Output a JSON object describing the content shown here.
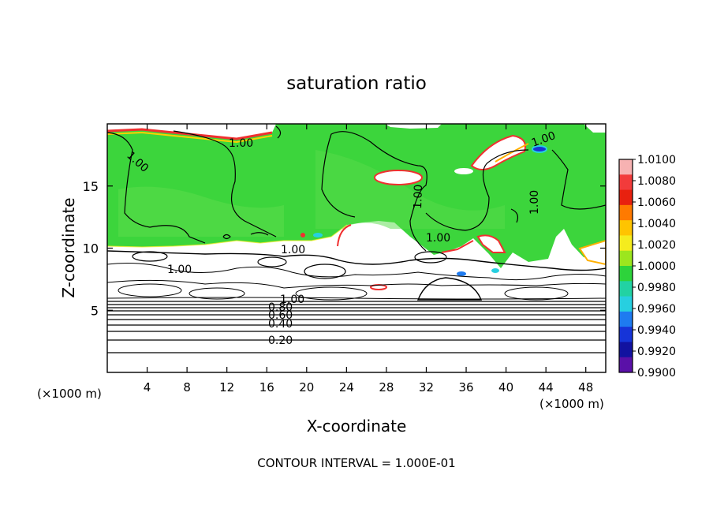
{
  "chart_data": {
    "type": "heatmap",
    "title": "saturation ratio",
    "xlabel": "X-coordinate",
    "ylabel": "Z-coordinate",
    "x_unit_left": "(×1000 m)",
    "x_unit_right": "(×1000 m)",
    "xlim": [
      0,
      50
    ],
    "ylim": [
      0,
      20
    ],
    "x_ticks": [
      4,
      8,
      12,
      16,
      20,
      24,
      28,
      32,
      36,
      40,
      44,
      48
    ],
    "y_ticks": [
      5,
      10,
      15
    ],
    "colorbar": {
      "ticks": [
        "1.0100",
        "1.0080",
        "1.0060",
        "1.0040",
        "1.0020",
        "1.0000",
        "0.9980",
        "0.9960",
        "0.9940",
        "0.9920",
        "0.9900"
      ],
      "colors": [
        "#f7b2b2",
        "#f23b3b",
        "#e8210f",
        "#ff7a00",
        "#ffc400",
        "#f5ec1e",
        "#9ce61e",
        "#2dd33b",
        "#22d2a3",
        "#27cfe0",
        "#1e7bf0",
        "#1634d8",
        "#1212a0",
        "#5a10a8"
      ]
    },
    "colors": {
      "field": "#3cd53c",
      "field_light": "#55dd55",
      "contour": "#000000"
    },
    "contour_labels": [
      "1.00",
      "1.00",
      "1.00",
      "1.00",
      "1.00",
      "1.00",
      "1.00",
      "1.00",
      "0.80",
      "0.60",
      "0.40",
      "0.20",
      "1.00"
    ],
    "footer": "CONTOUR INTERVAL = 1.000E-01"
  }
}
